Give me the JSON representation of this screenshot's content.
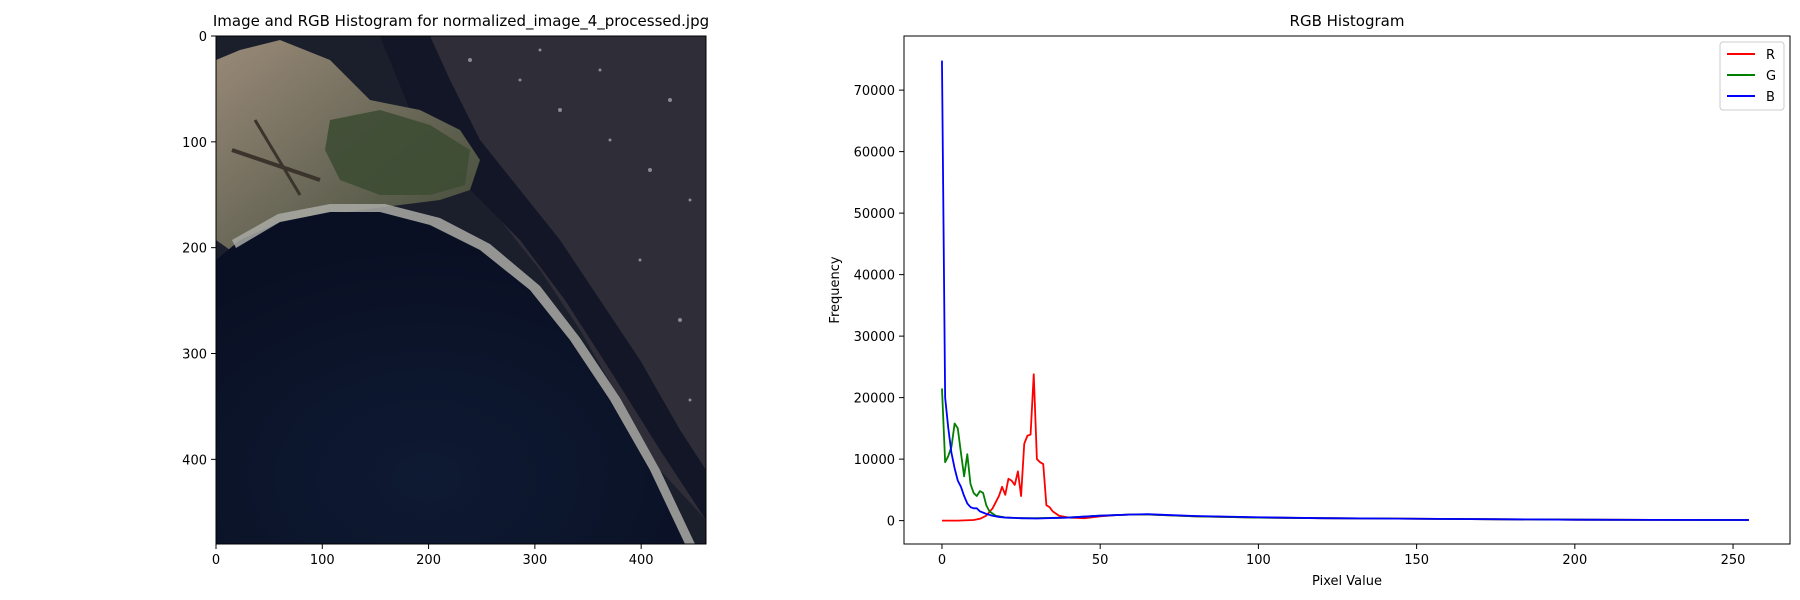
{
  "chart_data": [
    {
      "type": "image",
      "title": "Image and RGB Histogram for normalized_image_4_processed.jpg",
      "x_ticks": [
        0,
        100,
        200,
        300,
        400
      ],
      "y_ticks": [
        0,
        100,
        200,
        300,
        400
      ],
      "xlim": [
        0,
        461
      ],
      "ylim": [
        480,
        0
      ],
      "image_description_colors": {
        "water": "#0b1226",
        "urban": "#2b2a33",
        "land": "#8a7a6a",
        "green": "#4a5a3a",
        "beach": "#a8a8a0"
      }
    },
    {
      "type": "line",
      "title": "RGB Histogram",
      "xlabel": "Pixel Value",
      "ylabel": "Frequency",
      "xlim": [
        -12,
        268
      ],
      "ylim": [
        -3800,
        78800
      ],
      "x_ticks": [
        0,
        50,
        100,
        150,
        200,
        250
      ],
      "y_ticks": [
        0,
        10000,
        20000,
        30000,
        40000,
        50000,
        60000,
        70000
      ],
      "grid": false,
      "legend": "upper-right",
      "series": [
        {
          "name": "R",
          "color": "#ff0000",
          "points": [
            [
              0,
              0
            ],
            [
              5,
              0
            ],
            [
              10,
              100
            ],
            [
              12,
              300
            ],
            [
              14,
              800
            ],
            [
              16,
              2000
            ],
            [
              18,
              4000
            ],
            [
              19,
              5500
            ],
            [
              20,
              4200
            ],
            [
              21,
              6800
            ],
            [
              22,
              6500
            ],
            [
              23,
              5800
            ],
            [
              24,
              8000
            ],
            [
              25,
              4000
            ],
            [
              26,
              12500
            ],
            [
              27,
              13800
            ],
            [
              28,
              14000
            ],
            [
              29,
              23800
            ],
            [
              30,
              10000
            ],
            [
              31,
              9500
            ],
            [
              32,
              9200
            ],
            [
              33,
              2500
            ],
            [
              34,
              2200
            ],
            [
              35,
              1500
            ],
            [
              37,
              800
            ],
            [
              40,
              500
            ],
            [
              45,
              400
            ],
            [
              50,
              700
            ],
            [
              55,
              900
            ],
            [
              60,
              1000
            ],
            [
              65,
              1000
            ],
            [
              70,
              900
            ],
            [
              80,
              700
            ],
            [
              100,
              500
            ],
            [
              120,
              400
            ],
            [
              150,
              300
            ],
            [
              200,
              150
            ],
            [
              255,
              100
            ]
          ]
        },
        {
          "name": "G",
          "color": "#008000",
          "points": [
            [
              0,
              21500
            ],
            [
              1,
              9500
            ],
            [
              2,
              10500
            ],
            [
              3,
              12000
            ],
            [
              4,
              15800
            ],
            [
              5,
              15000
            ],
            [
              6,
              11000
            ],
            [
              7,
              7200
            ],
            [
              8,
              10800
            ],
            [
              9,
              6000
            ],
            [
              10,
              4500
            ],
            [
              11,
              4000
            ],
            [
              12,
              4800
            ],
            [
              13,
              4500
            ],
            [
              14,
              2500
            ],
            [
              15,
              1500
            ],
            [
              17,
              800
            ],
            [
              20,
              500
            ],
            [
              25,
              400
            ],
            [
              30,
              400
            ],
            [
              40,
              500
            ],
            [
              50,
              800
            ],
            [
              60,
              1000
            ],
            [
              65,
              1000
            ],
            [
              70,
              900
            ],
            [
              80,
              700
            ],
            [
              100,
              500
            ],
            [
              120,
              400
            ],
            [
              150,
              300
            ],
            [
              200,
              150
            ],
            [
              255,
              100
            ]
          ]
        },
        {
          "name": "B",
          "color": "#0000ff",
          "points": [
            [
              0,
              74800
            ],
            [
              1,
              20000
            ],
            [
              2,
              15000
            ],
            [
              3,
              11000
            ],
            [
              4,
              8500
            ],
            [
              5,
              6500
            ],
            [
              6,
              5500
            ],
            [
              7,
              4000
            ],
            [
              8,
              2800
            ],
            [
              9,
              2200
            ],
            [
              10,
              2000
            ],
            [
              11,
              2000
            ],
            [
              12,
              1500
            ],
            [
              14,
              1100
            ],
            [
              16,
              800
            ],
            [
              18,
              600
            ],
            [
              20,
              500
            ],
            [
              25,
              400
            ],
            [
              30,
              350
            ],
            [
              40,
              500
            ],
            [
              50,
              800
            ],
            [
              60,
              1000
            ],
            [
              65,
              1050
            ],
            [
              70,
              950
            ],
            [
              80,
              750
            ],
            [
              100,
              550
            ],
            [
              120,
              400
            ],
            [
              150,
              300
            ],
            [
              200,
              150
            ],
            [
              255,
              100
            ]
          ]
        }
      ]
    }
  ]
}
